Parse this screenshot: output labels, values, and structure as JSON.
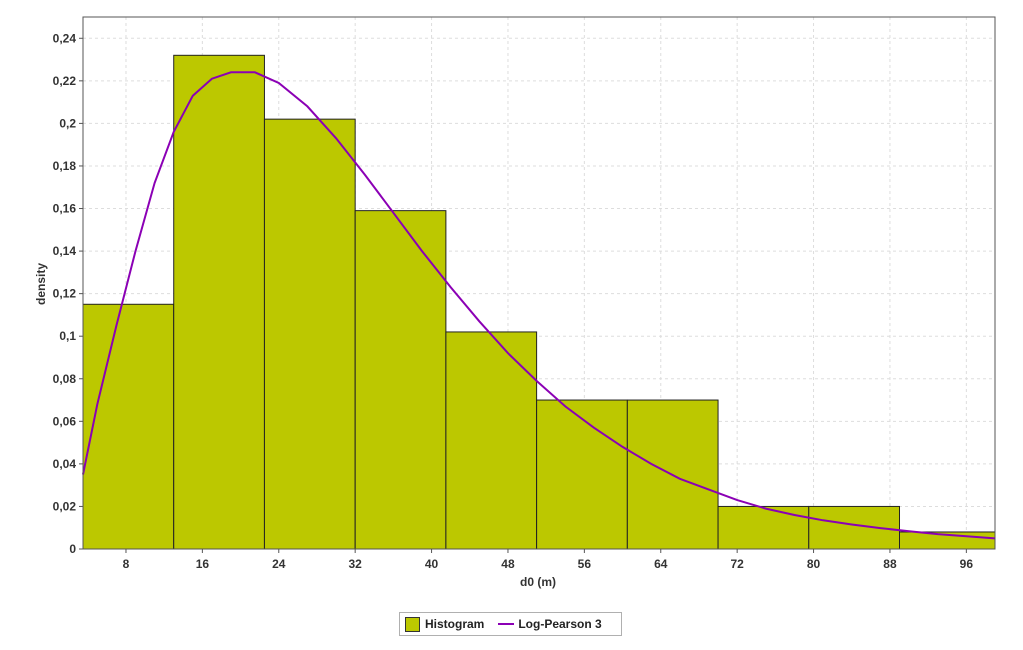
{
  "chart_data": {
    "type": "bar",
    "xlabel": "d0 (m)",
    "ylabel": "density",
    "xlim": [
      3.5,
      99
    ],
    "ylim": [
      0,
      0.25
    ],
    "x_ticks": [
      {
        "value": 8,
        "label": "8"
      },
      {
        "value": 16,
        "label": "16"
      },
      {
        "value": 24,
        "label": "24"
      },
      {
        "value": 32,
        "label": "32"
      },
      {
        "value": 40,
        "label": "40"
      },
      {
        "value": 48,
        "label": "48"
      },
      {
        "value": 56,
        "label": "56"
      },
      {
        "value": 64,
        "label": "64"
      },
      {
        "value": 72,
        "label": "72"
      },
      {
        "value": 80,
        "label": "80"
      },
      {
        "value": 88,
        "label": "88"
      },
      {
        "value": 96,
        "label": "96"
      }
    ],
    "y_ticks": [
      {
        "value": 0,
        "label": "0"
      },
      {
        "value": 0.02,
        "label": "0,02"
      },
      {
        "value": 0.04,
        "label": "0,04"
      },
      {
        "value": 0.06,
        "label": "0,06"
      },
      {
        "value": 0.08,
        "label": "0,08"
      },
      {
        "value": 0.1,
        "label": "0,1"
      },
      {
        "value": 0.12,
        "label": "0,12"
      },
      {
        "value": 0.14,
        "label": "0,14"
      },
      {
        "value": 0.16,
        "label": "0,16"
      },
      {
        "value": 0.18,
        "label": "0,18"
      },
      {
        "value": 0.2,
        "label": "0,2"
      },
      {
        "value": 0.22,
        "label": "0,22"
      },
      {
        "value": 0.24,
        "label": "0,24"
      }
    ],
    "grid": true,
    "legend_position": "bottom",
    "series": [
      {
        "name": "Histogram",
        "type": "histogram",
        "color": "#bcc800",
        "bins": [
          {
            "x0": 3.5,
            "x1": 13.0,
            "value": 0.115
          },
          {
            "x0": 13.0,
            "x1": 22.5,
            "value": 0.232
          },
          {
            "x0": 22.5,
            "x1": 32.0,
            "value": 0.202
          },
          {
            "x0": 32.0,
            "x1": 41.5,
            "value": 0.159
          },
          {
            "x0": 41.5,
            "x1": 51.0,
            "value": 0.102
          },
          {
            "x0": 51.0,
            "x1": 60.5,
            "value": 0.07
          },
          {
            "x0": 60.5,
            "x1": 70.0,
            "value": 0.07
          },
          {
            "x0": 70.0,
            "x1": 79.5,
            "value": 0.02
          },
          {
            "x0": 79.5,
            "x1": 89.0,
            "value": 0.02
          },
          {
            "x0": 89.0,
            "x1": 99.0,
            "value": 0.008
          }
        ]
      },
      {
        "name": "Log-Pearson 3",
        "type": "line",
        "color": "#8b00b5",
        "points": [
          [
            3.5,
            0.035
          ],
          [
            5,
            0.068
          ],
          [
            7,
            0.105
          ],
          [
            9,
            0.14
          ],
          [
            11,
            0.172
          ],
          [
            13,
            0.196
          ],
          [
            15,
            0.213
          ],
          [
            17,
            0.221
          ],
          [
            19,
            0.224
          ],
          [
            21.5,
            0.224
          ],
          [
            24,
            0.219
          ],
          [
            27,
            0.208
          ],
          [
            30,
            0.193
          ],
          [
            33,
            0.176
          ],
          [
            36,
            0.158
          ],
          [
            39,
            0.14
          ],
          [
            42,
            0.123
          ],
          [
            45,
            0.107
          ],
          [
            48,
            0.092
          ],
          [
            51,
            0.079
          ],
          [
            54,
            0.067
          ],
          [
            57,
            0.057
          ],
          [
            60,
            0.048
          ],
          [
            63,
            0.04
          ],
          [
            66,
            0.033
          ],
          [
            69,
            0.028
          ],
          [
            72,
            0.023
          ],
          [
            75,
            0.019
          ],
          [
            78,
            0.016
          ],
          [
            81,
            0.0135
          ],
          [
            84,
            0.0115
          ],
          [
            87,
            0.0098
          ],
          [
            90,
            0.0083
          ],
          [
            93,
            0.007
          ],
          [
            96,
            0.006
          ],
          [
            99,
            0.005
          ]
        ]
      }
    ]
  },
  "legend": {
    "histogram_label": "Histogram",
    "line_label": "Log-Pearson 3"
  }
}
